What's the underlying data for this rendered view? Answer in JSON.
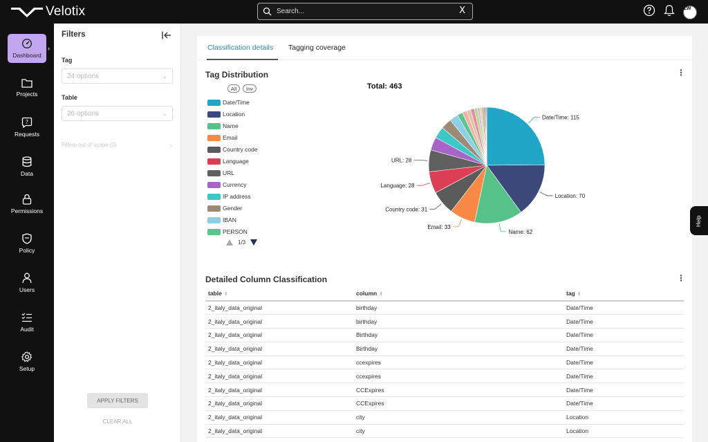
{
  "app": {
    "name": "Velotix"
  },
  "search": {
    "placeholder": "Search...",
    "clear": "X"
  },
  "user": {
    "initials": "LW"
  },
  "nav": [
    {
      "label": "Dashboard",
      "icon": "dashboard-icon",
      "active": true
    },
    {
      "label": "Projects",
      "icon": "folder-icon"
    },
    {
      "label": "Requests",
      "icon": "request-icon"
    },
    {
      "label": "Data",
      "icon": "database-icon"
    },
    {
      "label": "Permissions",
      "icon": "lock-icon"
    },
    {
      "label": "Policy",
      "icon": "shield-icon"
    },
    {
      "label": "Users",
      "icon": "user-icon"
    },
    {
      "label": "Audit",
      "icon": "checklist-icon"
    },
    {
      "label": "Setup",
      "icon": "gear-icon"
    }
  ],
  "filters": {
    "title": "Filters",
    "tag_label": "Tag",
    "tag_placeholder": "24 options",
    "table_label": "Table",
    "table_placeholder": "26 options",
    "out_of_scope": "Filters out of scope (0)",
    "apply": "APPLY FILTERS",
    "clear": "CLEAR ALL"
  },
  "tabs": [
    {
      "label": "Classification details",
      "active": true
    },
    {
      "label": "Tagging coverage",
      "active": false
    }
  ],
  "tag_distribution": {
    "title": "Tag Distribution",
    "all": "All",
    "inv": "Inv",
    "page": "1/3",
    "legend": [
      {
        "label": "Date/Time",
        "color": "#22a6c8"
      },
      {
        "label": "Location",
        "color": "#3b4a7a"
      },
      {
        "label": "Name",
        "color": "#56c28a"
      },
      {
        "label": "Email",
        "color": "#f98a45"
      },
      {
        "label": "Country code",
        "color": "#5b5b5b"
      },
      {
        "label": "Language",
        "color": "#dc3f55"
      },
      {
        "label": "URL",
        "color": "#606060"
      },
      {
        "label": "Currency",
        "color": "#a864c6"
      },
      {
        "label": "IP address",
        "color": "#3dc8c8"
      },
      {
        "label": "Gender",
        "color": "#9c8a76"
      },
      {
        "label": "IBAN",
        "color": "#8ccfe6"
      },
      {
        "label": "PERSON",
        "color": "#5cc48e"
      }
    ]
  },
  "chart_data": {
    "type": "pie",
    "title": "Total: 463",
    "total": 463,
    "slices": [
      {
        "label": "Date/Time",
        "value": 115,
        "color": "#22a6c8",
        "show_label": true
      },
      {
        "label": "Location",
        "value": 70,
        "color": "#3b4a7a",
        "show_label": true
      },
      {
        "label": "Name",
        "value": 62,
        "color": "#56c28a",
        "show_label": true
      },
      {
        "label": "Email",
        "value": 33,
        "color": "#f98a45",
        "show_label": true
      },
      {
        "label": "Country code",
        "value": 31,
        "color": "#5b5b5b",
        "show_label": true
      },
      {
        "label": "Language",
        "value": 28,
        "color": "#dc3f55",
        "show_label": true
      },
      {
        "label": "URL",
        "value": 28,
        "color": "#606060",
        "show_label": true
      },
      {
        "label": "Currency",
        "value": 17,
        "color": "#a864c6"
      },
      {
        "label": "IP address",
        "value": 15,
        "color": "#3dc8c8"
      },
      {
        "label": "Gender",
        "value": 14,
        "color": "#9c8a76"
      },
      {
        "label": "IBAN",
        "value": 11,
        "color": "#8ccfe6"
      },
      {
        "label": "PERSON",
        "value": 7,
        "color": "#5cc48e"
      },
      {
        "label": "",
        "value": 6,
        "color": "#f2b1a4"
      },
      {
        "label": "",
        "value": 5,
        "color": "#d8c8a8"
      },
      {
        "label": "",
        "value": 5,
        "color": "#e88aa0"
      },
      {
        "label": "",
        "value": 4,
        "color": "#b7d98b"
      },
      {
        "label": "",
        "value": 3,
        "color": "#c9b8e6"
      },
      {
        "label": "",
        "value": 3,
        "color": "#f5d27a"
      },
      {
        "label": "",
        "value": 2,
        "color": "#8aa1c6"
      },
      {
        "label": "",
        "value": 2,
        "color": "#c48a6c"
      },
      {
        "label": "",
        "value": 1,
        "color": "#3d3d3d"
      },
      {
        "label": "",
        "value": 1,
        "color": "#7a7a7a"
      }
    ]
  },
  "classification": {
    "title": "Detailed Column Classification",
    "headers": [
      "table",
      "column",
      "tag"
    ],
    "rows": [
      [
        "2_italy_data_original",
        "birthday",
        "Date/Time"
      ],
      [
        "2_italy_data_original",
        "birthday",
        "Date/Time"
      ],
      [
        "2_italy_data_original",
        "Birthday",
        "Date/Time"
      ],
      [
        "2_italy_data_original",
        "Birthday",
        "Date/Time"
      ],
      [
        "2_italy_data_original",
        "ccexpires",
        "Date/Time"
      ],
      [
        "2_italy_data_original",
        "ccexpires",
        "Date/Time"
      ],
      [
        "2_italy_data_original",
        "CCExpires",
        "Date/Time"
      ],
      [
        "2_italy_data_original",
        "CCExpires",
        "Date/Time"
      ],
      [
        "2_italy_data_original",
        "city",
        "Location"
      ],
      [
        "2_italy_data_original",
        "city",
        "Location"
      ]
    ]
  },
  "help": {
    "label": "Help"
  }
}
